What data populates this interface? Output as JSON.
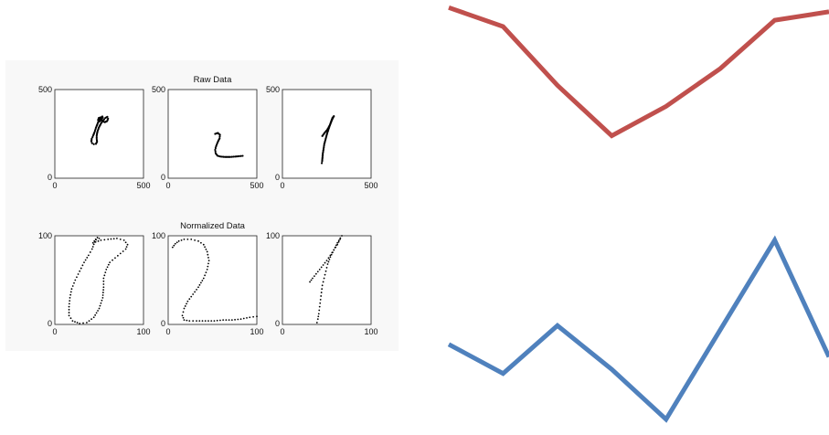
{
  "chart_data": [
    {
      "type": "scatter",
      "group": "raw",
      "title": "Raw Data",
      "xlim": [
        0,
        500
      ],
      "ylim": [
        0,
        500
      ],
      "xticks": [
        "0",
        "500"
      ],
      "yticks": [
        "0",
        "500"
      ],
      "panels": [
        {
          "name": "",
          "stroke_paths": [
            [
              [
                268,
                348
              ],
              [
                258,
                340
              ],
              [
                248,
                325
              ],
              [
                240,
                305
              ],
              [
                232,
                285
              ],
              [
                224,
                260
              ],
              [
                216,
                240
              ],
              [
                208,
                222
              ],
              [
                206,
                208
              ],
              [
                210,
                198
              ],
              [
                220,
                192
              ],
              [
                232,
                194
              ],
              [
                238,
                206
              ],
              [
                236,
                222
              ],
              [
                236,
                240
              ],
              [
                240,
                262
              ],
              [
                248,
                285
              ],
              [
                258,
                305
              ],
              [
                272,
                325
              ],
              [
                285,
                340
              ],
              [
                296,
                346
              ],
              [
                300,
                336
              ],
              [
                295,
                322
              ],
              [
                282,
                316
              ],
              [
                270,
                322
              ],
              [
                262,
                334
              ],
              [
                255,
                342
              ],
              [
                248,
                340
              ],
              [
                244,
                328
              ],
              [
                252,
                320
              ],
              [
                262,
                330
              ],
              [
                270,
                342
              ]
            ]
          ]
        },
        {
          "name": "",
          "stroke_paths": [
            [
              [
                265,
                250
              ],
              [
                280,
                255
              ],
              [
                292,
                245
              ],
              [
                290,
                225
              ],
              [
                280,
                205
              ],
              [
                270,
                180
              ],
              [
                265,
                160
              ],
              [
                268,
                140
              ],
              [
                278,
                127
              ],
              [
                295,
                122
              ],
              [
                320,
                120
              ],
              [
                350,
                120
              ],
              [
                378,
                122
              ],
              [
                400,
                124
              ],
              [
                420,
                126
              ]
            ]
          ]
        },
        {
          "name": "",
          "stroke_paths": [
            [
              [
                225,
                238
              ],
              [
                238,
                256
              ],
              [
                252,
                272
              ],
              [
                268,
                300
              ],
              [
                280,
                330
              ],
              [
                290,
                350
              ],
              [
                282,
                340
              ],
              [
                272,
                312
              ],
              [
                262,
                282
              ],
              [
                252,
                252
              ],
              [
                244,
                222
              ],
              [
                236,
                192
              ],
              [
                232,
                165
              ],
              [
                228,
                140
              ],
              [
                226,
                118
              ],
              [
                224,
                96
              ],
              [
                222,
                85
              ]
            ]
          ]
        }
      ]
    },
    {
      "type": "scatter",
      "group": "normalized",
      "title": "Normalized Data",
      "xlim": [
        0,
        100
      ],
      "ylim": [
        0,
        100
      ],
      "xticks": [
        "0",
        "100"
      ],
      "yticks": [
        "0",
        "100"
      ],
      "panels": [
        {
          "name": "",
          "stroke_paths": [
            [
              [
                48,
                98
              ],
              [
                45,
                93
              ],
              [
                42,
                85
              ],
              [
                38,
                78
              ],
              [
                33,
                70
              ],
              [
                28,
                60
              ],
              [
                23,
                50
              ],
              [
                19,
                40
              ],
              [
                17,
                30
              ],
              [
                16,
                20
              ],
              [
                16,
                10
              ],
              [
                20,
                4
              ],
              [
                28,
                1
              ],
              [
                36,
                2
              ],
              [
                44,
                8
              ],
              [
                50,
                18
              ],
              [
                54,
                30
              ],
              [
                55,
                42
              ],
              [
                55,
                52
              ],
              [
                58,
                62
              ],
              [
                62,
                70
              ],
              [
                68,
                75
              ],
              [
                74,
                80
              ],
              [
                80,
                85
              ],
              [
                82,
                90
              ],
              [
                78,
                95
              ],
              [
                70,
                97
              ],
              [
                60,
                96
              ],
              [
                52,
                95
              ],
              [
                46,
                93
              ],
              [
                43,
                92
              ],
              [
                46,
                96
              ],
              [
                50,
                97
              ]
            ]
          ]
        },
        {
          "name": "",
          "stroke_paths": [
            [
              [
                5,
                87
              ],
              [
                8,
                91
              ],
              [
                12,
                94
              ],
              [
                18,
                96
              ],
              [
                26,
                96
              ],
              [
                34,
                94
              ],
              [
                40,
                90
              ],
              [
                44,
                82
              ],
              [
                46,
                72
              ],
              [
                44,
                62
              ],
              [
                40,
                52
              ],
              [
                34,
                42
              ],
              [
                28,
                34
              ],
              [
                22,
                26
              ],
              [
                18,
                18
              ],
              [
                16,
                10
              ],
              [
                18,
                5
              ],
              [
                24,
                4
              ],
              [
                32,
                4
              ],
              [
                42,
                4
              ],
              [
                52,
                4
              ],
              [
                62,
                5
              ],
              [
                72,
                5
              ],
              [
                82,
                6
              ],
              [
                92,
                8
              ],
              [
                100,
                9
              ]
            ]
          ]
        },
        {
          "name": "",
          "stroke_paths": [
            [
              [
                31,
                48
              ],
              [
                34,
                52
              ],
              [
                38,
                57
              ],
              [
                42,
                62
              ],
              [
                46,
                67
              ],
              [
                50,
                72
              ],
              [
                54,
                78
              ],
              [
                58,
                84
              ],
              [
                62,
                90
              ],
              [
                65,
                96
              ],
              [
                67,
                100
              ],
              [
                62,
                92
              ],
              [
                58,
                84
              ],
              [
                54,
                76
              ],
              [
                51,
                68
              ],
              [
                49,
                60
              ],
              [
                47,
                52
              ],
              [
                45,
                44
              ],
              [
                44,
                36
              ],
              [
                43,
                28
              ],
              [
                42,
                20
              ],
              [
                41,
                12
              ],
              [
                40,
                6
              ],
              [
                39,
                2
              ]
            ]
          ]
        }
      ]
    },
    {
      "type": "line",
      "group": "decorative-lines",
      "xlim": [
        0,
        8
      ],
      "ylim": [
        0,
        100
      ],
      "series": [
        {
          "color": "#c0504d",
          "values": [
            99,
            90,
            62,
            38,
            52,
            70,
            93,
            97
          ]
        },
        {
          "color": "#4f81bd",
          "values": [
            40,
            26,
            49,
            28,
            4,
            47,
            90,
            34
          ]
        }
      ]
    }
  ]
}
